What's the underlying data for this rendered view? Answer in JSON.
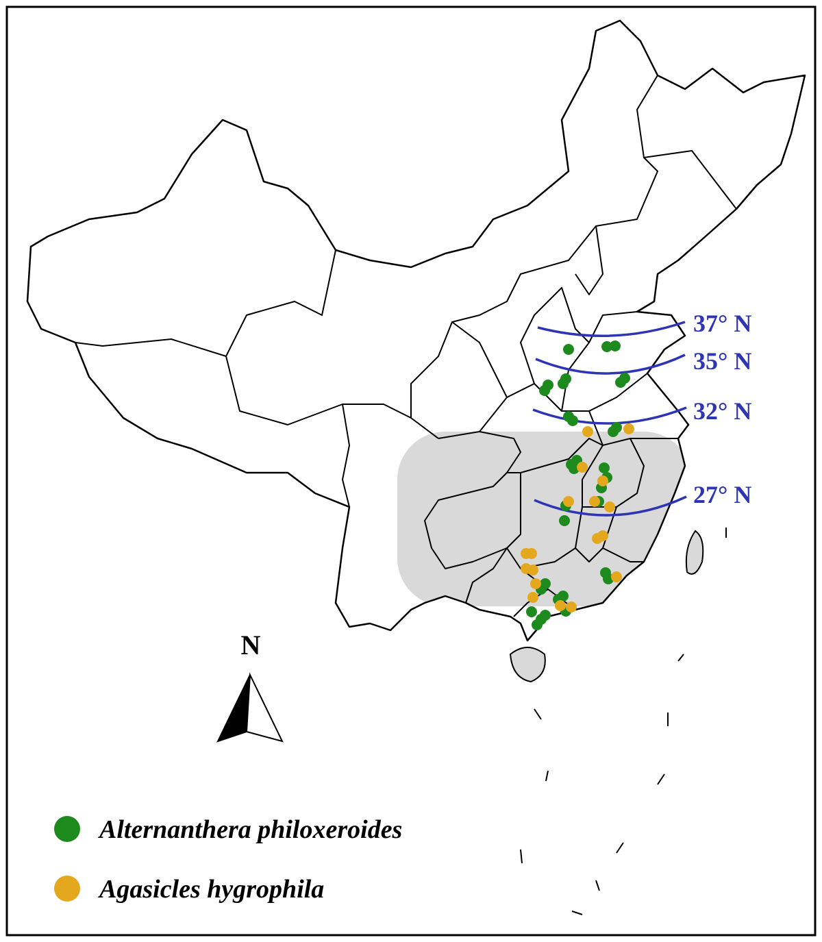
{
  "latitude_labels": [
    "37° N",
    "35° N",
    "32° N",
    "27° N"
  ],
  "latitude_color": "#2e35b5",
  "north_arrow": {
    "label": "N"
  },
  "legend": {
    "items": [
      {
        "label": "Alternanthera philoxeroides",
        "color": "#1d8a1d"
      },
      {
        "label": "Agasicles hygrophila",
        "color": "#e3a81e"
      }
    ]
  }
}
